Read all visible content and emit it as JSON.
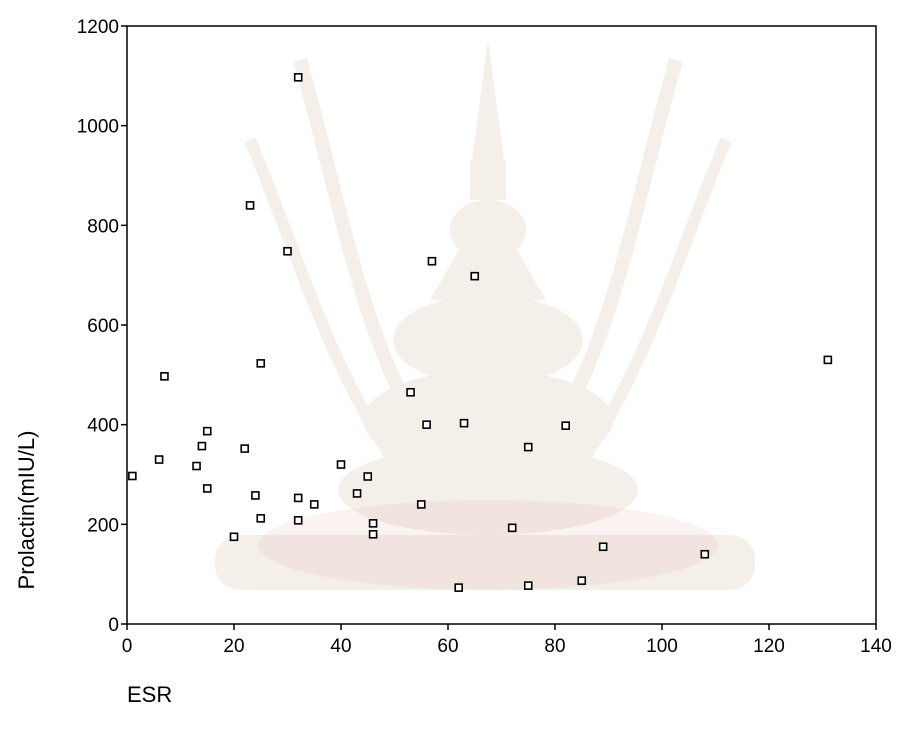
{
  "chart_data": {
    "type": "scatter",
    "title": "",
    "xlabel": "ESR",
    "ylabel": "Prolactin(mIU/L)",
    "xlim": [
      0,
      140
    ],
    "ylim": [
      0,
      1200
    ],
    "x_ticks": [
      0,
      20,
      40,
      60,
      80,
      100,
      120,
      140
    ],
    "y_ticks": [
      0,
      200,
      400,
      600,
      800,
      1000,
      1200
    ],
    "grid": false,
    "legend": "none",
    "marker": "open-square",
    "color": "#000000",
    "points": [
      {
        "x": 1,
        "y": 297
      },
      {
        "x": 6,
        "y": 330
      },
      {
        "x": 7,
        "y": 497
      },
      {
        "x": 13,
        "y": 317
      },
      {
        "x": 14,
        "y": 357
      },
      {
        "x": 15,
        "y": 387
      },
      {
        "x": 15,
        "y": 272
      },
      {
        "x": 20,
        "y": 175
      },
      {
        "x": 22,
        "y": 352
      },
      {
        "x": 23,
        "y": 840
      },
      {
        "x": 24,
        "y": 258
      },
      {
        "x": 25,
        "y": 212
      },
      {
        "x": 25,
        "y": 523
      },
      {
        "x": 30,
        "y": 748
      },
      {
        "x": 32,
        "y": 1097
      },
      {
        "x": 32,
        "y": 253
      },
      {
        "x": 32,
        "y": 208
      },
      {
        "x": 35,
        "y": 240
      },
      {
        "x": 40,
        "y": 320
      },
      {
        "x": 43,
        "y": 262
      },
      {
        "x": 45,
        "y": 296
      },
      {
        "x": 46,
        "y": 202
      },
      {
        "x": 46,
        "y": 180
      },
      {
        "x": 53,
        "y": 465
      },
      {
        "x": 55,
        "y": 240
      },
      {
        "x": 56,
        "y": 400
      },
      {
        "x": 57,
        "y": 728
      },
      {
        "x": 62,
        "y": 73
      },
      {
        "x": 63,
        "y": 403
      },
      {
        "x": 65,
        "y": 698
      },
      {
        "x": 72,
        "y": 193
      },
      {
        "x": 75,
        "y": 77
      },
      {
        "x": 75,
        "y": 355
      },
      {
        "x": 82,
        "y": 398
      },
      {
        "x": 85,
        "y": 87
      },
      {
        "x": 89,
        "y": 155
      },
      {
        "x": 108,
        "y": 140
      },
      {
        "x": 131,
        "y": 530
      }
    ]
  }
}
